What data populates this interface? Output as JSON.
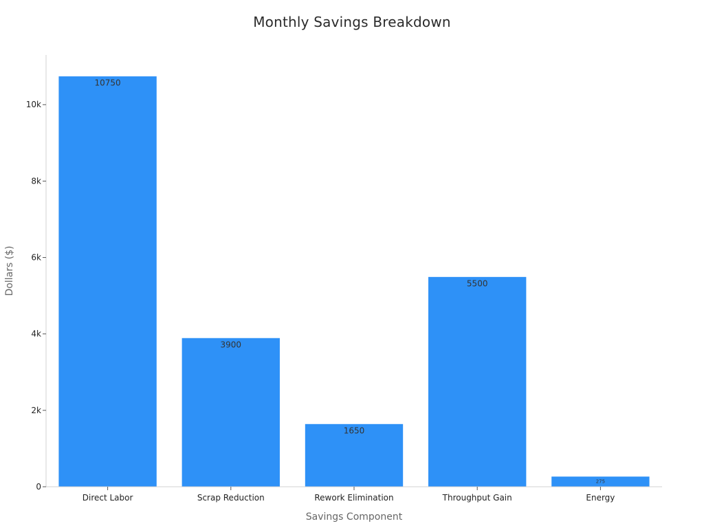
{
  "chart_data": {
    "type": "bar",
    "title": "Monthly Savings Breakdown",
    "xlabel": "Savings Component",
    "ylabel": "Dollars ($)",
    "categories": [
      "Direct Labor",
      "Scrap Reduction",
      "Rework Elimination",
      "Throughput Gain",
      "Energy"
    ],
    "values": [
      10750,
      3900,
      1650,
      5500,
      275
    ],
    "data_labels": [
      "10750",
      "3900",
      "1650",
      "5500",
      "275"
    ],
    "ylim": [
      0,
      11300
    ],
    "yticks": [
      0,
      2000,
      4000,
      6000,
      8000,
      10000
    ],
    "ytick_labels": [
      "0",
      "2k",
      "4k",
      "6k",
      "8k",
      "10k"
    ],
    "bar_color": "#2e91f7",
    "grid": false,
    "legend": "none"
  }
}
